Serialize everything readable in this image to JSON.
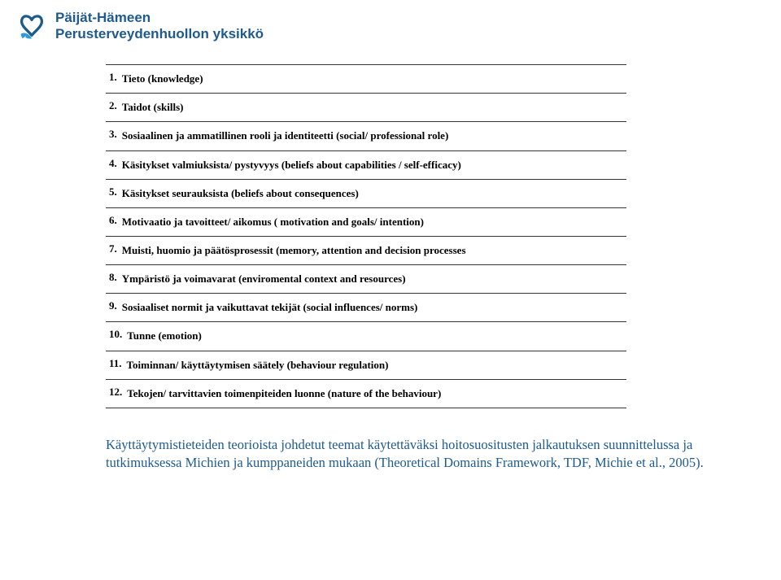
{
  "header": {
    "line1": "Päijät-Hämeen",
    "line2": "Perusterveydenhuollon yksikkö",
    "logo_color": "#1e5a8e",
    "ribbon_color": "#2e9bd6"
  },
  "list": {
    "items": [
      {
        "num": "1.",
        "text": "Tieto (knowledge)"
      },
      {
        "num": "2.",
        "text": "Taidot (skills)"
      },
      {
        "num": "3.",
        "text": "Sosiaalinen ja ammatillinen rooli ja identiteetti (social/ professional role)"
      },
      {
        "num": "4.",
        "text": "Käsitykset valmiuksista/ pystyvyys (beliefs about capabilities / self-efficacy)"
      },
      {
        "num": "5.",
        "text": "Käsitykset seurauksista (beliefs about consequences)"
      },
      {
        "num": "6.",
        "text": "Motivaatio ja tavoitteet/ aikomus ( motivation and goals/ intention)"
      },
      {
        "num": "7.",
        "text": "Muisti, huomio ja päätösprosessit (memory, attention and decision processes"
      },
      {
        "num": "8.",
        "text": "Ympäristö ja voimavarat (enviromental context and resources)"
      },
      {
        "num": "9.",
        "text": "Sosiaaliset normit ja vaikuttavat tekijät (social influences/ norms)"
      },
      {
        "num": "10.",
        "text": "Tunne (emotion)"
      },
      {
        "num": "11.",
        "text": "Toiminnan/ käyttäytymisen säätely (behaviour regulation)"
      },
      {
        "num": "12.",
        "text": "Tekojen/ tarvittavien toimenpiteiden luonne (nature of the behaviour)"
      }
    ]
  },
  "footer": {
    "text": "Käyttäytymistieteiden teorioista johdetut teemat käytettäväksi hoitosuositusten jalkautuksen suunnittelussa ja tutkimuksessa  Michien ja kumppaneiden mukaan (Theoretical Domains Framework, TDF, Michie et al., 2005)."
  },
  "colors": {
    "text_blue": "#1e5a8e",
    "border": "#333333",
    "background": "#ffffff"
  }
}
